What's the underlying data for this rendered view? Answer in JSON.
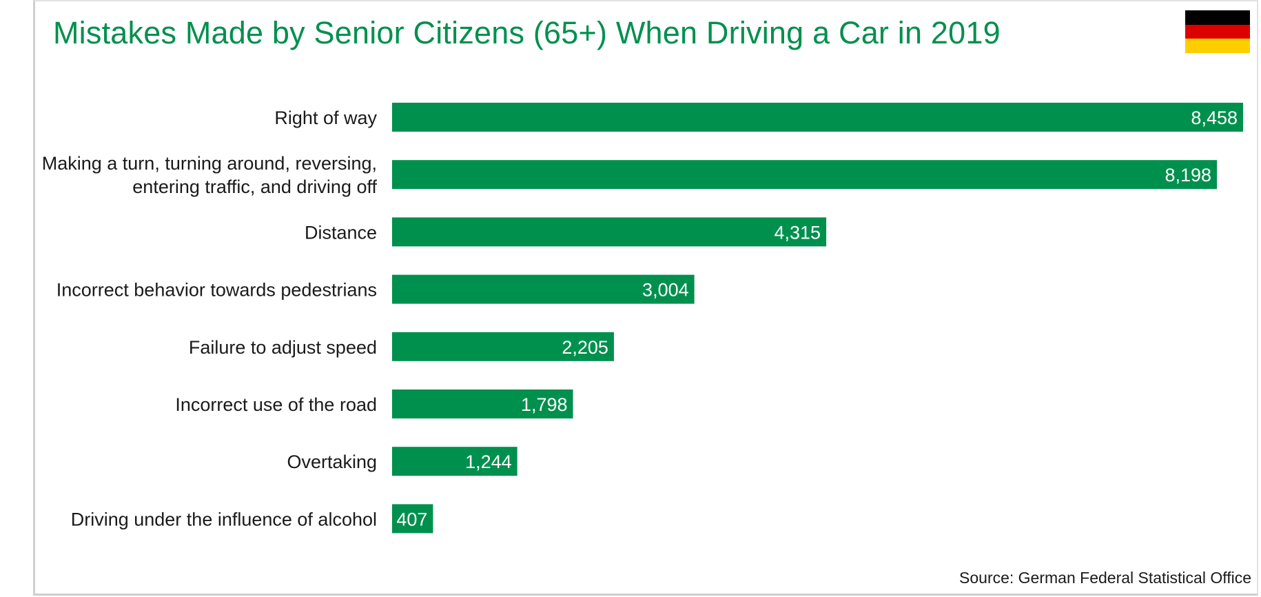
{
  "title": "Mistakes Made by Senior Citizens (65+) When Driving a Car in 2019",
  "source": "Source: German Federal Statistical Office",
  "flag_icon": "germany-flag-icon",
  "colors": {
    "bar": "#00904e",
    "title": "#00904e",
    "flag_black": "#000000",
    "flag_red": "#dd0000",
    "flag_gold": "#ffce00"
  },
  "chart_data": {
    "type": "bar",
    "orientation": "horizontal",
    "title": "Mistakes Made by Senior Citizens (65+) When Driving a Car in 2019",
    "categories": [
      [
        "Right of way"
      ],
      [
        "Making a turn, turning around, reversing,",
        "entering traffic, and driving off"
      ],
      [
        "Distance"
      ],
      [
        "Incorrect behavior towards pedestrians"
      ],
      [
        "Failure to adjust speed"
      ],
      [
        "Incorrect use of the road"
      ],
      [
        "Overtaking"
      ],
      [
        "Driving under the influence of alcohol"
      ]
    ],
    "values": [
      8458,
      8198,
      4315,
      3004,
      2205,
      1798,
      1244,
      407
    ],
    "value_labels": [
      "8,458",
      "8,198",
      "4,315",
      "3,004",
      "2,205",
      "1,798",
      "1,244",
      "407"
    ],
    "xlim": [
      0,
      8458
    ],
    "grid": false,
    "legend": "none"
  }
}
